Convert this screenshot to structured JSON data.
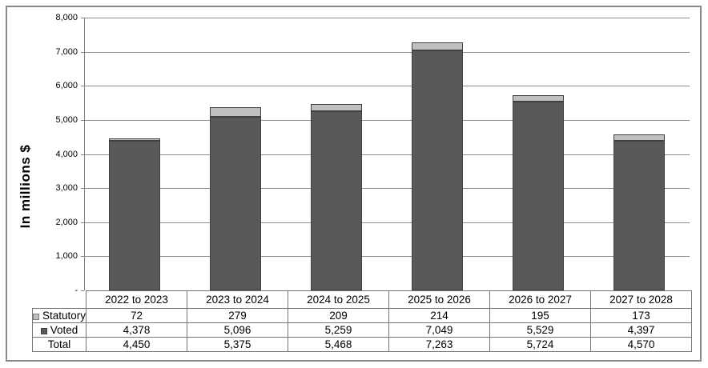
{
  "figure": {
    "y_axis_title": "In millions $",
    "y_ticks": [
      "8,000",
      "7,000",
      "6,000",
      "5,000",
      "4,000",
      "3,000",
      "2,000",
      "1,000",
      "-"
    ]
  },
  "chart_data": {
    "type": "bar",
    "stacked": true,
    "title": "",
    "xlabel": "",
    "ylabel": "In millions $",
    "ylim": [
      0,
      8000
    ],
    "grid": true,
    "categories": [
      "2022 to 2023",
      "2023 to 2024",
      "2024 to 2025",
      "2025 to 2026",
      "2026 to 2027",
      "2027 to 2028"
    ],
    "series": [
      {
        "name": "Voted",
        "color": "#595959",
        "values": [
          4378,
          5096,
          5259,
          7049,
          5529,
          4397
        ]
      },
      {
        "name": "Statutory",
        "color": "#bfbfbf",
        "values": [
          72,
          279,
          209,
          214,
          195,
          173
        ]
      }
    ],
    "totals": [
      4450,
      5375,
      5468,
      7263,
      5724,
      4570
    ],
    "legend_position": "table-left"
  },
  "table": {
    "header": [
      "2022 to 2023",
      "2023 to 2024",
      "2024 to 2025",
      "2025 to 2026",
      "2026 to 2027",
      "2027 to 2028"
    ],
    "rows": [
      {
        "label": "Statutory",
        "swatch": "light",
        "values": [
          "72",
          "279",
          "209",
          "214",
          "195",
          "173"
        ]
      },
      {
        "label": "Voted",
        "swatch": "dark",
        "values": [
          "4,378",
          "5,096",
          "5,259",
          "7,049",
          "5,529",
          "4,397"
        ]
      },
      {
        "label": "Total",
        "swatch": "none",
        "values": [
          "4,450",
          "5,375",
          "5,468",
          "7,263",
          "5,724",
          "4,570"
        ]
      }
    ]
  },
  "colors": {
    "voted_fill": "#595959",
    "statutory_fill": "#bfbfbf",
    "bar_border": "#404040",
    "gridline": "#8e8e8e",
    "axis": "#7f7f7f",
    "table_border": "#767676",
    "frame_border": "#8a8a8a"
  }
}
